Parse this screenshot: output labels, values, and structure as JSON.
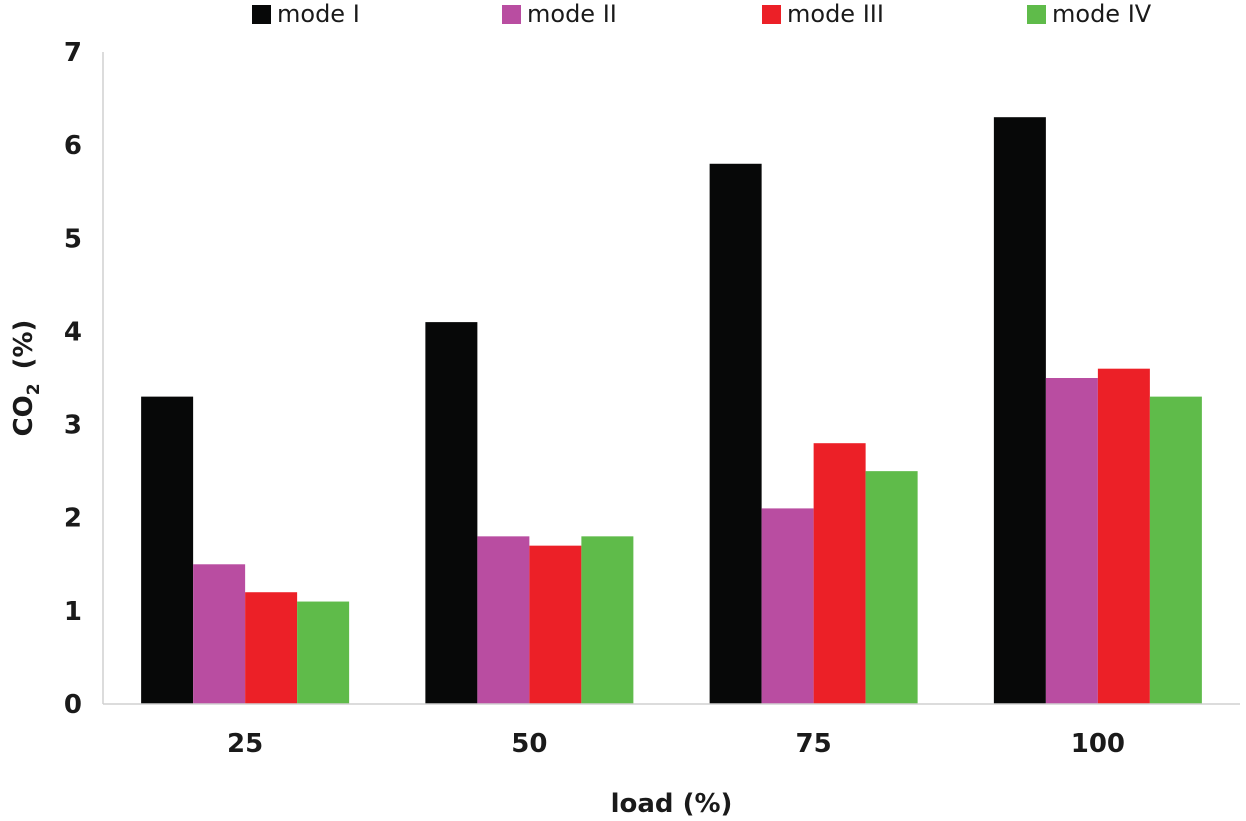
{
  "chart_data": {
    "type": "bar",
    "categories": [
      "25",
      "50",
      "75",
      "100"
    ],
    "series": [
      {
        "name": "mode I",
        "color": "#070808",
        "values": [
          3.3,
          4.1,
          5.8,
          6.3
        ]
      },
      {
        "name": "mode II",
        "color": "#B94DA1",
        "values": [
          1.5,
          1.8,
          2.1,
          3.5
        ]
      },
      {
        "name": "mode III",
        "color": "#EC2027",
        "values": [
          1.2,
          1.7,
          2.8,
          3.6
        ]
      },
      {
        "name": "mode IV",
        "color": "#5FBB4A",
        "values": [
          1.1,
          1.8,
          2.5,
          3.3
        ]
      }
    ],
    "xlabel": "load (%)",
    "ylabel": {
      "main": "CO",
      "subscript": "2",
      "unit": "(%)"
    },
    "ylim": [
      0,
      7
    ],
    "yticks": [
      0,
      1,
      2,
      3,
      4,
      5,
      6,
      7
    ],
    "grid": false,
    "legend_position": "top"
  }
}
